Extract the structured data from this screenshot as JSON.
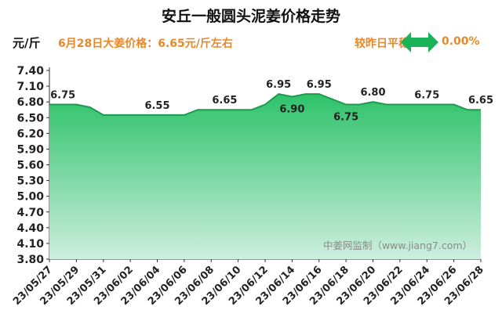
{
  "title": "安丘一般圆头泥姜价格走势",
  "unit_label": "元/斤",
  "today_price_text": "6月28日大姜价格：6.65元/斤左右",
  "compare_label": "较昨日平稳",
  "compare_change": "0.00%",
  "compare_icon": "double-arrow-icon",
  "colors": {
    "accent": "#e6892c",
    "fill_top": "#2ec26a",
    "fill_bottom": "#cdeede",
    "line": "#1e9a4f",
    "arrow": "#1ab35a"
  },
  "watermark": "中姜网监制（www.jiang7.com）",
  "chart_data": {
    "type": "area",
    "title": "安丘一般圆头泥姜价格走势",
    "ylabel": "元/斤",
    "ylim": [
      3.8,
      7.4
    ],
    "yticks": [
      "3.80",
      "4.10",
      "4.40",
      "4.70",
      "5.00",
      "5.30",
      "5.60",
      "5.90",
      "6.20",
      "6.50",
      "6.80",
      "7.10",
      "7.40"
    ],
    "xticks": [
      "23/05/27",
      "23/05/29",
      "23/05/31",
      "23/06/02",
      "23/06/04",
      "23/06/06",
      "23/06/08",
      "23/06/10",
      "23/06/12",
      "23/06/14",
      "23/06/16",
      "23/06/18",
      "23/06/20",
      "23/06/22",
      "23/06/24",
      "23/06/26",
      "23/06/28"
    ],
    "x": [
      "23/05/27",
      "23/05/28",
      "23/05/29",
      "23/05/30",
      "23/05/31",
      "23/06/01",
      "23/06/02",
      "23/06/03",
      "23/06/04",
      "23/06/05",
      "23/06/06",
      "23/06/07",
      "23/06/08",
      "23/06/09",
      "23/06/10",
      "23/06/11",
      "23/06/12",
      "23/06/13",
      "23/06/14",
      "23/06/15",
      "23/06/16",
      "23/06/17",
      "23/06/18",
      "23/06/19",
      "23/06/20",
      "23/06/21",
      "23/06/22",
      "23/06/23",
      "23/06/24",
      "23/06/25",
      "23/06/26",
      "23/06/27",
      "23/06/28"
    ],
    "values": [
      6.75,
      6.75,
      6.75,
      6.7,
      6.55,
      6.55,
      6.55,
      6.55,
      6.55,
      6.55,
      6.55,
      6.65,
      6.65,
      6.65,
      6.65,
      6.65,
      6.75,
      6.95,
      6.9,
      6.95,
      6.95,
      6.85,
      6.75,
      6.75,
      6.8,
      6.75,
      6.75,
      6.75,
      6.75,
      6.75,
      6.75,
      6.65,
      6.65
    ],
    "annotations": [
      {
        "x": "23/05/28",
        "label": "6.75",
        "pos": "above"
      },
      {
        "x": "23/06/04",
        "label": "6.55",
        "pos": "above"
      },
      {
        "x": "23/06/09",
        "label": "6.65",
        "pos": "above"
      },
      {
        "x": "23/06/13",
        "label": "6.95",
        "pos": "above"
      },
      {
        "x": "23/06/14",
        "label": "6.90",
        "pos": "below"
      },
      {
        "x": "23/06/16",
        "label": "6.95",
        "pos": "above"
      },
      {
        "x": "23/06/18",
        "label": "6.75",
        "pos": "below"
      },
      {
        "x": "23/06/20",
        "label": "6.80",
        "pos": "above"
      },
      {
        "x": "23/06/24",
        "label": "6.75",
        "pos": "above"
      },
      {
        "x": "23/06/28",
        "label": "6.65",
        "pos": "above"
      }
    ],
    "grid": false,
    "legend": "none"
  }
}
